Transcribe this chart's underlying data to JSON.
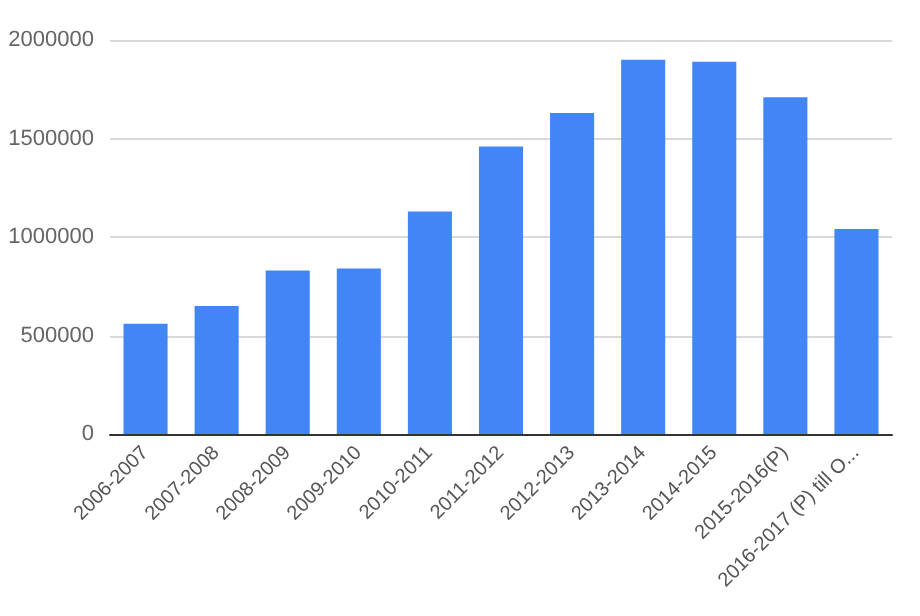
{
  "chart_data": {
    "type": "bar",
    "categories": [
      "2006-2007",
      "2007-2008",
      "2008-2009",
      "2009-2010",
      "2010-2011",
      "2011-2012",
      "2012-2013",
      "2013-2014",
      "2014-2015",
      "2015-2016(P)",
      "2016-2017 (P) till O..."
    ],
    "values": [
      560000,
      650000,
      830000,
      840000,
      1130000,
      1460000,
      1630000,
      1900000,
      1890000,
      1710000,
      1040000
    ],
    "color": "#4285f4",
    "ylim": [
      0,
      2000000
    ],
    "yticks": [
      0,
      500000,
      1000000,
      1500000,
      2000000
    ],
    "grid": "y"
  }
}
